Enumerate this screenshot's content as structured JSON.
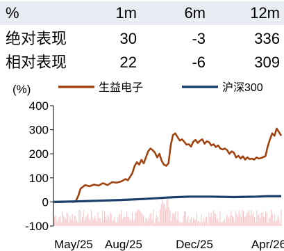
{
  "performance_table": {
    "headers": [
      "%",
      "1m",
      "6m",
      "12m"
    ],
    "rows": [
      {
        "label": "绝对表现",
        "values": [
          "30",
          "-3",
          "336"
        ]
      },
      {
        "label": "相对表现",
        "values": [
          "22",
          "-6",
          "309"
        ]
      }
    ]
  },
  "chart_data": {
    "type": "line",
    "ylabel": "(%)",
    "ylim": [
      -100,
      400
    ],
    "yticks": [
      -100,
      0,
      100,
      200,
      300,
      400
    ],
    "xtick_labels": [
      "May/25",
      "Aug/25",
      "Dec/25",
      "Apr/26"
    ],
    "legend_position": "top",
    "series": [
      {
        "name": "生益电子",
        "color": "#a0430f",
        "points": [
          [
            0,
            0
          ],
          [
            4,
            0
          ],
          [
            7,
            2
          ],
          [
            9,
            0
          ],
          [
            10,
            5
          ],
          [
            11,
            25
          ],
          [
            12,
            55
          ],
          [
            14,
            70
          ],
          [
            16,
            65
          ],
          [
            18,
            72
          ],
          [
            20,
            68
          ],
          [
            22,
            78
          ],
          [
            24,
            70
          ],
          [
            26,
            82
          ],
          [
            28,
            80
          ],
          [
            30,
            85
          ],
          [
            32,
            95
          ],
          [
            33,
            90
          ],
          [
            35,
            120
          ],
          [
            36,
            150
          ],
          [
            37,
            165
          ],
          [
            38,
            155
          ],
          [
            39,
            175
          ],
          [
            40,
            160
          ],
          [
            41,
            185
          ],
          [
            42,
            210
          ],
          [
            43,
            222
          ],
          [
            44,
            215
          ],
          [
            45,
            205
          ],
          [
            46,
            185
          ],
          [
            47,
            200
          ],
          [
            48,
            170
          ],
          [
            49,
            155
          ],
          [
            50,
            150
          ],
          [
            51,
            160
          ],
          [
            52,
            235
          ],
          [
            53,
            278
          ],
          [
            54,
            285
          ],
          [
            55,
            270
          ],
          [
            56,
            255
          ],
          [
            57,
            260
          ],
          [
            58,
            250
          ],
          [
            59,
            238
          ],
          [
            60,
            240
          ],
          [
            61,
            230
          ],
          [
            62,
            250
          ],
          [
            63,
            258
          ],
          [
            64,
            245
          ],
          [
            65,
            255
          ],
          [
            66,
            260
          ],
          [
            67,
            242
          ],
          [
            68,
            252
          ],
          [
            69,
            248
          ],
          [
            70,
            235
          ],
          [
            71,
            240
          ],
          [
            72,
            228
          ],
          [
            73,
            235
          ],
          [
            74,
            222
          ],
          [
            75,
            218
          ],
          [
            76,
            222
          ],
          [
            77,
            215
          ],
          [
            78,
            200
          ],
          [
            79,
            210
          ],
          [
            80,
            205
          ],
          [
            81,
            185
          ],
          [
            82,
            192
          ],
          [
            83,
            180
          ],
          [
            84,
            190
          ],
          [
            85,
            176
          ],
          [
            86,
            185
          ],
          [
            87,
            178
          ],
          [
            88,
            180
          ],
          [
            89,
            176
          ],
          [
            90,
            185
          ],
          [
            91,
            180
          ],
          [
            92,
            182
          ],
          [
            93,
            186
          ],
          [
            94,
            190
          ],
          [
            95,
            230
          ],
          [
            96,
            260
          ],
          [
            97,
            285
          ],
          [
            98,
            275
          ],
          [
            99,
            305
          ],
          [
            100,
            290
          ],
          [
            101,
            275
          ]
        ]
      },
      {
        "name": "沪深300",
        "color": "#1a3f6b",
        "points": [
          [
            0,
            0
          ],
          [
            10,
            2
          ],
          [
            20,
            5
          ],
          [
            30,
            8
          ],
          [
            40,
            12
          ],
          [
            50,
            18
          ],
          [
            55,
            20
          ],
          [
            60,
            22
          ],
          [
            70,
            22
          ],
          [
            80,
            20
          ],
          [
            85,
            21
          ],
          [
            90,
            22
          ],
          [
            95,
            24
          ],
          [
            101,
            24
          ]
        ]
      }
    ]
  }
}
